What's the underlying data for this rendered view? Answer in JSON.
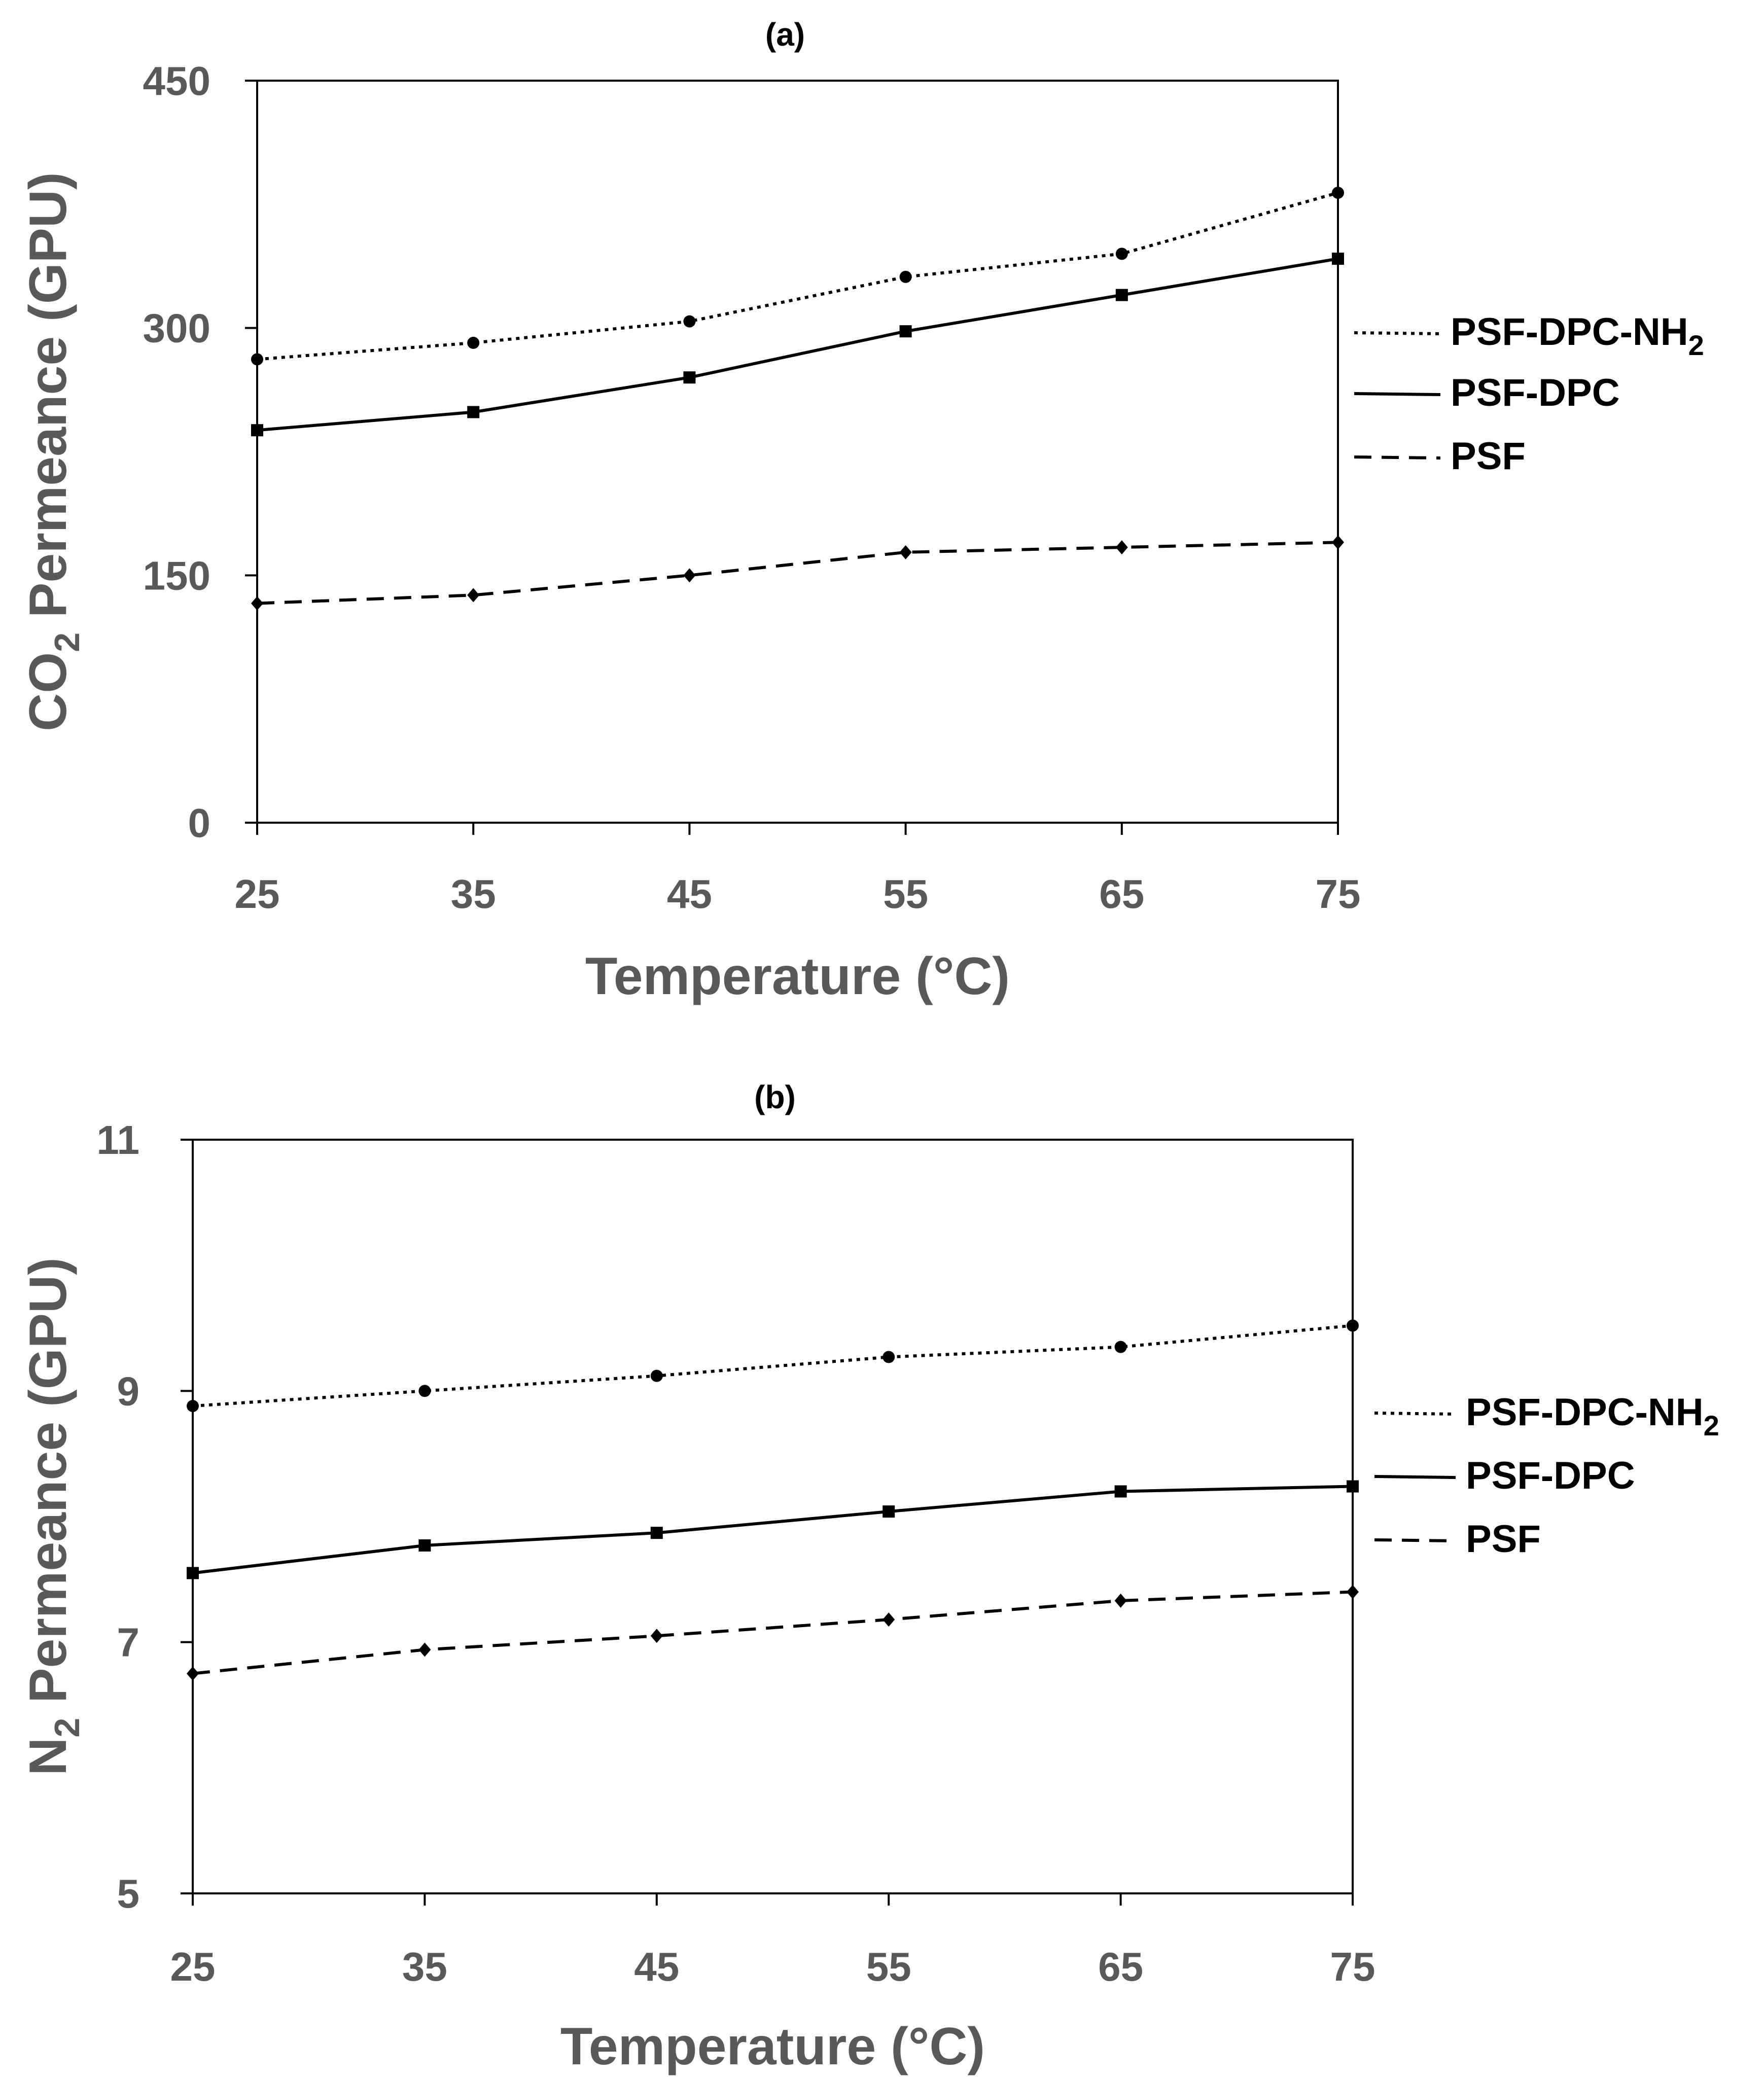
{
  "chart_data": [
    {
      "panel": "a",
      "type": "line",
      "title": "(a)",
      "xlabel": "Temperature (°C)",
      "ylabel_main": "CO",
      "ylabel_sub": "2",
      "ylabel_rest": " Permeance (GPU)",
      "x": [
        25,
        35,
        45,
        55,
        65,
        75
      ],
      "xticks": [
        "25",
        "35",
        "45",
        "55",
        "65",
        "75"
      ],
      "ylim": [
        0,
        450
      ],
      "yticks": [
        "0",
        "150",
        "300",
        "450"
      ],
      "series": [
        {
          "name": "PSF-DPC-NH",
          "name_sub": "2",
          "style": "dotted",
          "marker": "circle",
          "values": [
            281,
            291,
            304,
            331,
            345,
            382
          ]
        },
        {
          "name": "PSF-DPC",
          "name_sub": "",
          "style": "solid",
          "marker": "square",
          "values": [
            238,
            249,
            270,
            298,
            320,
            342
          ]
        },
        {
          "name": "PSF",
          "name_sub": "",
          "style": "dashed",
          "marker": "diamond",
          "values": [
            133,
            138,
            150,
            164,
            167,
            170
          ]
        }
      ]
    },
    {
      "panel": "b",
      "type": "line",
      "title": "(b)",
      "xlabel": "Temperature (°C)",
      "ylabel_main": "N",
      "ylabel_sub": "2",
      "ylabel_rest": " Permeance (GPU)",
      "x": [
        25,
        35,
        45,
        55,
        65,
        75
      ],
      "xticks": [
        "25",
        "35",
        "45",
        "55",
        "65",
        "75"
      ],
      "ylim": [
        5,
        11
      ],
      "yticks": [
        "5",
        "7",
        "9",
        "11"
      ],
      "series": [
        {
          "name": "PSF-DPC-NH",
          "name_sub": "2",
          "style": "dotted",
          "marker": "circle",
          "values": [
            8.88,
            9.0,
            9.12,
            9.27,
            9.35,
            9.52
          ]
        },
        {
          "name": "PSF-DPC",
          "name_sub": "",
          "style": "solid",
          "marker": "square",
          "values": [
            7.55,
            7.77,
            7.87,
            8.04,
            8.2,
            8.24
          ]
        },
        {
          "name": "PSF",
          "name_sub": "",
          "style": "dashed",
          "marker": "diamond",
          "values": [
            6.75,
            6.94,
            7.05,
            7.18,
            7.33,
            7.4
          ]
        }
      ]
    }
  ]
}
